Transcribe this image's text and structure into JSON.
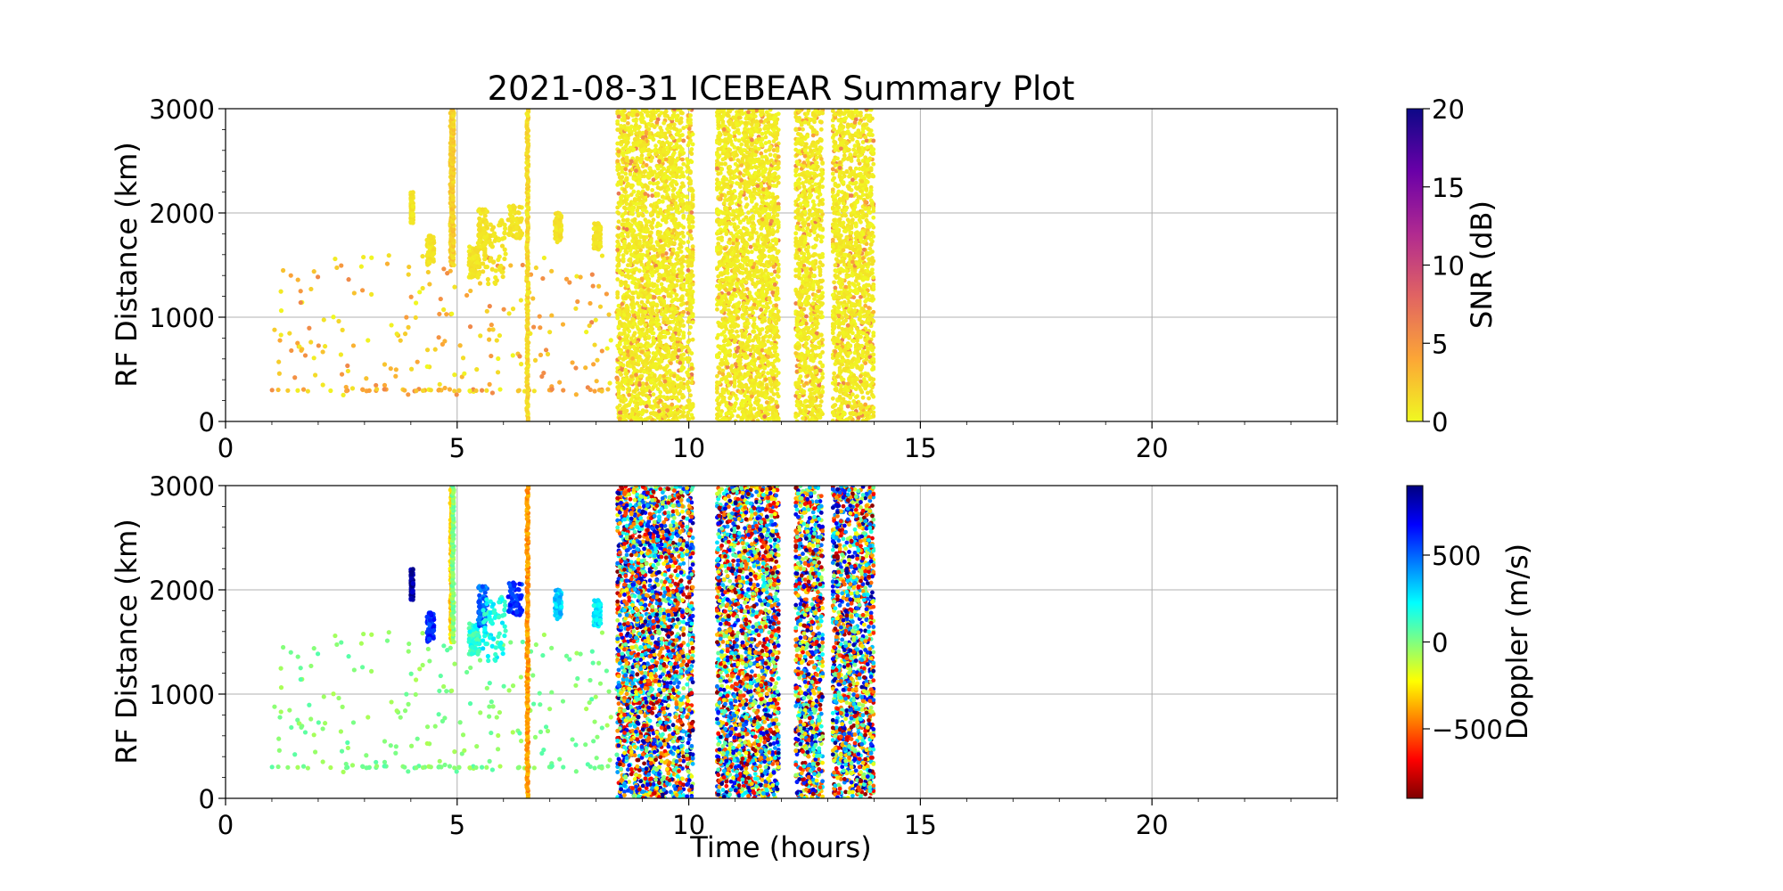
{
  "chart_data": [
    {
      "type": "scatter",
      "title": "2021-08-31 ICEBEAR Summary Plot",
      "xlabel": "",
      "ylabel": "RF Distance (km)",
      "xlim": [
        0,
        24
      ],
      "ylim": [
        0,
        3000
      ],
      "xticks": [
        0,
        5,
        10,
        15,
        20
      ],
      "yticks": [
        0,
        1000,
        2000,
        3000
      ],
      "grid": true,
      "colorbar": {
        "label": "SNR (dB)",
        "range": [
          0,
          20
        ],
        "ticks": [
          0,
          5,
          10,
          15,
          20
        ],
        "colormap": "plasma_r",
        "colors": [
          "#f0f921",
          "#fca636",
          "#e16462",
          "#b12a90",
          "#6a00a8",
          "#0d0887"
        ]
      },
      "color_value": "SNR (dB)",
      "dense_bands": [
        {
          "x": [
            8.45,
            8.6
          ],
          "y": [
            0,
            3000
          ],
          "color_level": 0.5
        },
        {
          "x": [
            8.6,
            9.9
          ],
          "y": [
            0,
            3000
          ],
          "color_level": 0.5
        },
        {
          "x": [
            9.95,
            10.1
          ],
          "y": [
            0,
            3000
          ],
          "color_level": 0.5
        },
        {
          "x": [
            10.6,
            11.95
          ],
          "y": [
            0,
            3000
          ],
          "color_level": 0.5
        },
        {
          "x": [
            12.3,
            12.9
          ],
          "y": [
            0,
            3000
          ],
          "color_level": 0.5
        },
        {
          "x": [
            13.1,
            14.0
          ],
          "y": [
            0,
            3000
          ],
          "color_level": 0.5
        }
      ],
      "vertical_streaks": [
        {
          "x": 4.87,
          "y": [
            1500,
            3000
          ],
          "value": 1
        },
        {
          "x": 4.91,
          "y": [
            1500,
            3000
          ],
          "value": 1
        },
        {
          "x": 6.52,
          "y": [
            0,
            3000
          ],
          "value": 0.5
        }
      ],
      "clusters": [
        {
          "x": [
            4.35,
            4.5
          ],
          "y": [
            1500,
            1780
          ],
          "value": 0.5
        },
        {
          "x": [
            5.25,
            5.5
          ],
          "y": [
            1380,
            1680
          ],
          "value": 0.5
        },
        {
          "x": [
            5.45,
            5.65
          ],
          "y": [
            1650,
            2050
          ],
          "value": 0.5
        },
        {
          "x": [
            5.55,
            6.05
          ],
          "y": [
            1320,
            1950
          ],
          "value": 0.5
        },
        {
          "x": [
            6.1,
            6.4
          ],
          "y": [
            1750,
            2070
          ],
          "value": 0.5
        },
        {
          "x": [
            7.1,
            7.25
          ],
          "y": [
            1720,
            2000
          ],
          "value": 0.5
        },
        {
          "x": [
            7.95,
            8.1
          ],
          "y": [
            1650,
            1900
          ],
          "value": 0.5
        },
        {
          "x": [
            4.0,
            4.05
          ],
          "y": [
            1900,
            2200
          ],
          "value": 0.5
        }
      ],
      "scatter_region": {
        "x": [
          1.0,
          8.5
        ],
        "y": [
          250,
          1600
        ],
        "values": [
          0,
          6
        ]
      }
    },
    {
      "type": "scatter",
      "title": "",
      "xlabel": "Time (hours)",
      "ylabel": "RF Distance (km)",
      "xlim": [
        0,
        24
      ],
      "ylim": [
        0,
        3000
      ],
      "xticks": [
        0,
        5,
        10,
        15,
        20
      ],
      "yticks": [
        0,
        1000,
        2000,
        3000
      ],
      "grid": true,
      "colorbar": {
        "label": "Doppler (m/s)",
        "range": [
          -900,
          900
        ],
        "ticks": [
          -500,
          0,
          500
        ],
        "tick_labels": [
          "−500",
          "0",
          "500"
        ],
        "colormap": "jet_r",
        "colors": [
          "#7f0000",
          "#ff0000",
          "#ff8000",
          "#ffff00",
          "#80ff80",
          "#00ffff",
          "#0080ff",
          "#0000ff",
          "#00007f"
        ]
      },
      "color_value": "Doppler (m/s)",
      "dense_bands": [
        {
          "x": [
            8.45,
            8.6
          ],
          "y": [
            0,
            3000
          ],
          "color_level": 0.5
        },
        {
          "x": [
            8.6,
            9.9
          ],
          "y": [
            0,
            3000
          ],
          "color_level": 0.5
        },
        {
          "x": [
            9.95,
            10.1
          ],
          "y": [
            0,
            3000
          ],
          "color_level": 0.5
        },
        {
          "x": [
            10.6,
            11.95
          ],
          "y": [
            0,
            3000
          ],
          "color_level": 0.5
        },
        {
          "x": [
            12.3,
            12.9
          ],
          "y": [
            0,
            3000
          ],
          "color_level": 0.5
        },
        {
          "x": [
            13.1,
            14.0
          ],
          "y": [
            0,
            3000
          ],
          "color_level": 0.5
        }
      ],
      "vertical_streaks": [
        {
          "x": 4.87,
          "y": [
            1500,
            3000
          ],
          "value": -300
        },
        {
          "x": 4.91,
          "y": [
            1500,
            3000
          ],
          "value": 0
        },
        {
          "x": 6.52,
          "y": [
            0,
            3000
          ],
          "value": -400
        }
      ],
      "clusters": [
        {
          "x": [
            4.35,
            4.5
          ],
          "y": [
            1500,
            1780
          ],
          "value": 600
        },
        {
          "x": [
            5.25,
            5.5
          ],
          "y": [
            1380,
            1680
          ],
          "value": 150
        },
        {
          "x": [
            5.45,
            5.65
          ],
          "y": [
            1650,
            2050
          ],
          "value": 500
        },
        {
          "x": [
            5.55,
            6.05
          ],
          "y": [
            1320,
            1950
          ],
          "value": 200
        },
        {
          "x": [
            6.1,
            6.4
          ],
          "y": [
            1750,
            2070
          ],
          "value": 600
        },
        {
          "x": [
            7.1,
            7.25
          ],
          "y": [
            1720,
            2000
          ],
          "value": 300
        },
        {
          "x": [
            7.95,
            8.1
          ],
          "y": [
            1650,
            1900
          ],
          "value": 250
        },
        {
          "x": [
            4.0,
            4.05
          ],
          "y": [
            1900,
            2200
          ],
          "value": 850
        }
      ],
      "scatter_region": {
        "x": [
          1.0,
          8.5
        ],
        "y": [
          250,
          1600
        ],
        "values": [
          -80,
          80
        ]
      }
    }
  ]
}
